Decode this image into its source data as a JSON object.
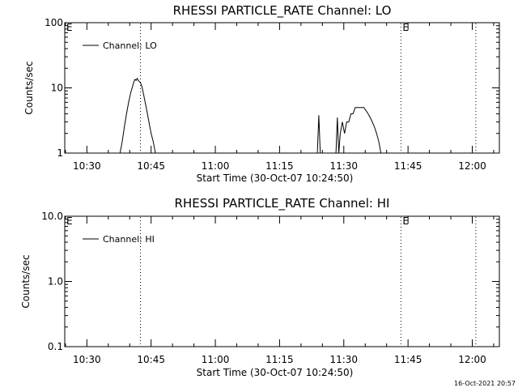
{
  "chart_data": [
    {
      "type": "line",
      "title": "RHESSI PARTICLE_RATE Channel: LO",
      "xlabel": "Start Time (30-Oct-07 10:24:50)",
      "ylabel": "Counts/sec",
      "yscale": "log",
      "ylim": [
        1,
        100
      ],
      "ytick_labels": [
        "1",
        "10",
        "100"
      ],
      "ytick_values": [
        1,
        10,
        100
      ],
      "xlim": [
        "10:24:50",
        "12:06:20"
      ],
      "xtick_labels": [
        "10:30",
        "10:45",
        "11:00",
        "11:15",
        "11:30",
        "11:45",
        "12:00"
      ],
      "legend": {
        "placement": "top-left",
        "entries": [
          "Channel: LO"
        ]
      },
      "event_markers": [
        {
          "label": "E",
          "time": "10:24:50",
          "style": "none"
        },
        {
          "label": "",
          "time": "10:42:30",
          "style": "dotted"
        },
        {
          "label": "E",
          "time": "11:43:20",
          "style": "dotted"
        },
        {
          "label": "",
          "time": "12:00:50",
          "style": "dotted"
        }
      ],
      "series": [
        {
          "name": "Channel: LO",
          "x": [
            "10:37:45",
            "10:38:15",
            "10:38:45",
            "10:39:15",
            "10:39:45",
            "10:40:15",
            "10:40:45",
            "10:41:00",
            "10:41:15",
            "10:41:30",
            "10:41:45",
            "10:42:00",
            "10:42:15",
            "10:42:30",
            "10:42:45",
            "10:43:00",
            "10:43:15",
            "10:43:30",
            "10:44:00",
            "10:44:30",
            "10:45:00",
            "10:45:30",
            "10:46:00",
            "10:46:30",
            "11:23:50",
            "11:24:10",
            "11:24:30",
            "11:24:50",
            "11:28:10",
            "11:28:30",
            "11:28:50",
            "11:29:10",
            "11:29:40",
            "11:30:10",
            "11:30:40",
            "11:31:10",
            "11:31:40",
            "11:32:10",
            "11:32:40",
            "11:33:10",
            "11:33:40",
            "11:34:10",
            "11:34:40",
            "11:35:10",
            "11:35:40",
            "11:36:10",
            "11:36:40",
            "11:37:10",
            "11:37:40",
            "11:38:10",
            "11:38:40",
            "11:39:10",
            "11:39:30"
          ],
          "y": [
            1,
            1.5,
            2.5,
            4,
            6,
            8.5,
            11,
            12.5,
            13.5,
            13,
            14,
            13,
            12.5,
            12,
            11,
            9.5,
            8,
            6.5,
            4.5,
            3,
            2,
            1.5,
            1,
            1,
            1,
            3.8,
            1,
            1,
            1,
            3.5,
            1,
            2,
            3,
            2,
            3,
            3,
            4,
            4,
            5,
            5,
            5,
            5,
            5,
            4.5,
            4,
            3.5,
            3,
            2.5,
            2,
            1.5,
            1,
            1,
            1
          ]
        }
      ]
    },
    {
      "type": "line",
      "title": "RHESSI PARTICLE_RATE Channel: HI",
      "xlabel": "Start Time (30-Oct-07 10:24:50)",
      "ylabel": "Counts/sec",
      "yscale": "log",
      "ylim": [
        0.1,
        10
      ],
      "ytick_labels": [
        "0.1",
        "1.0",
        "10.0"
      ],
      "ytick_values": [
        0.1,
        1,
        10
      ],
      "xlim": [
        "10:24:50",
        "12:06:20"
      ],
      "xtick_labels": [
        "10:30",
        "10:45",
        "11:00",
        "11:15",
        "11:30",
        "11:45",
        "12:00"
      ],
      "legend": {
        "placement": "top-left",
        "entries": [
          "Channel: HI"
        ]
      },
      "event_markers": [
        {
          "label": "E",
          "time": "10:24:50",
          "style": "none"
        },
        {
          "label": "",
          "time": "10:42:30",
          "style": "dotted"
        },
        {
          "label": "E",
          "time": "11:43:20",
          "style": "dotted"
        },
        {
          "label": "",
          "time": "12:00:50",
          "style": "dotted"
        }
      ],
      "series": [
        {
          "name": "Channel: HI",
          "x": [],
          "y": []
        }
      ]
    }
  ],
  "footer": {
    "timestamp": "16-Oct-2021 20:57"
  }
}
